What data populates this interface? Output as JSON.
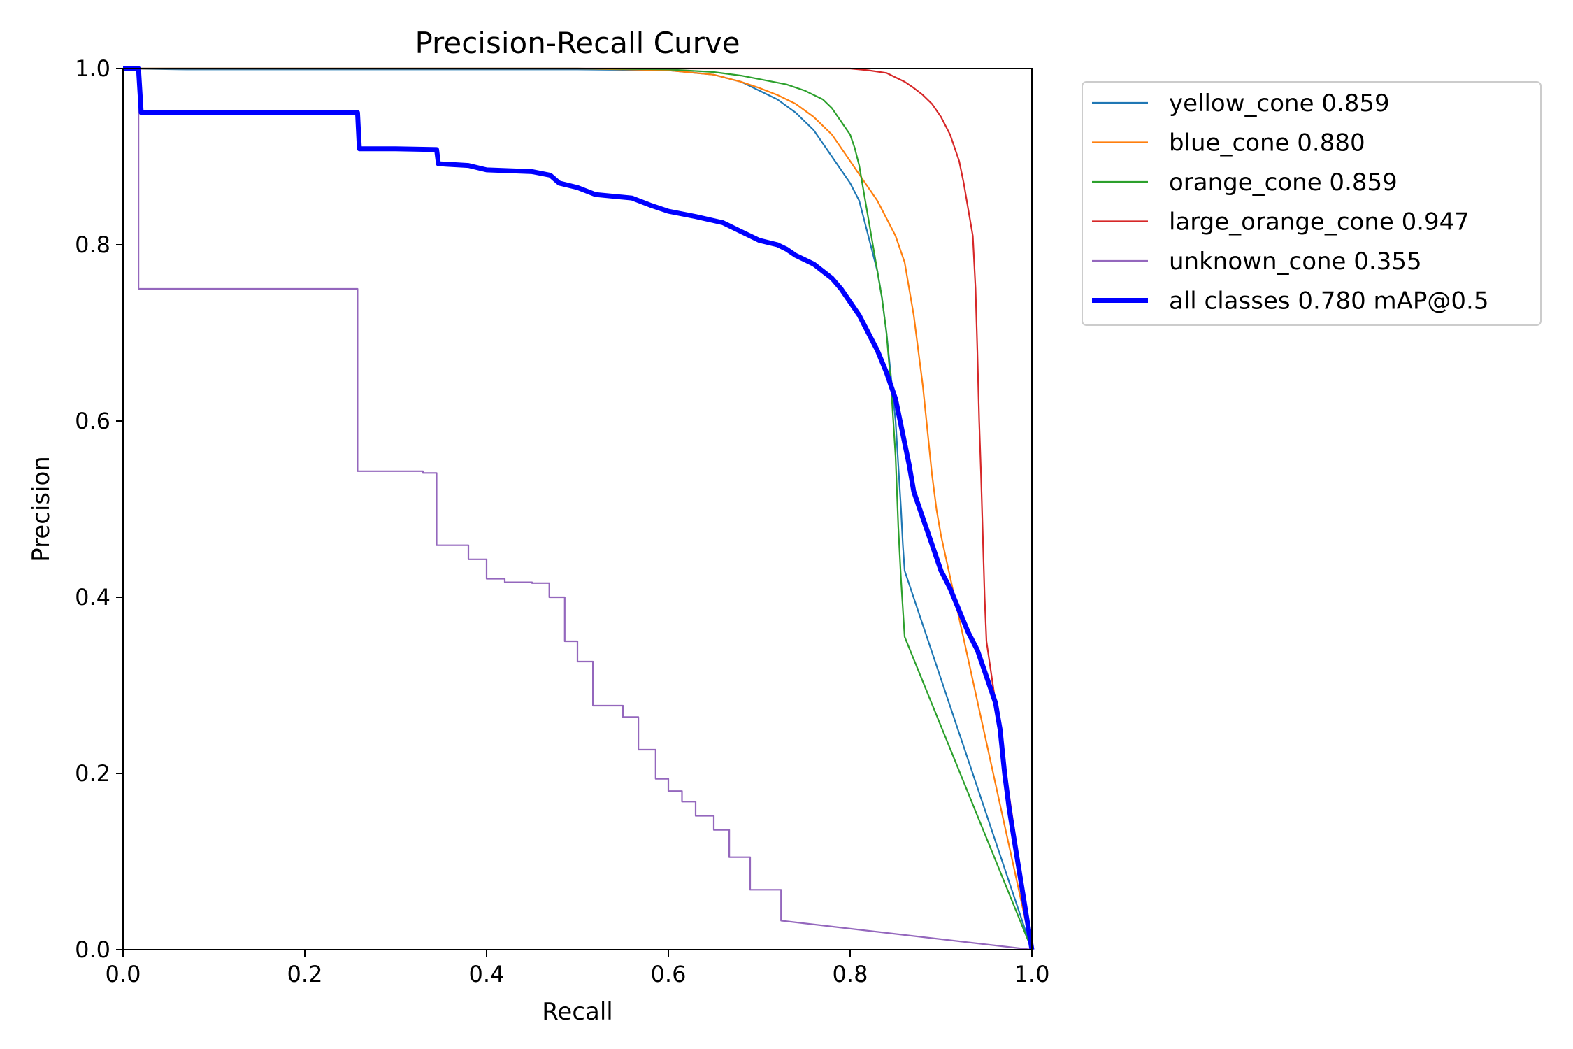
{
  "chart_data": {
    "type": "line",
    "title": "Precision-Recall Curve",
    "xlabel": "Recall",
    "ylabel": "Precision",
    "xlim": [
      0,
      1
    ],
    "ylim": [
      0,
      1
    ],
    "xticks": [
      "0.0",
      "0.2",
      "0.4",
      "0.6",
      "0.8",
      "1.0"
    ],
    "yticks": [
      "0.0",
      "0.2",
      "0.4",
      "0.6",
      "0.8",
      "1.0"
    ],
    "grid": false,
    "legend_position": "outside-top-right",
    "series": [
      {
        "name": "yellow_cone 0.859",
        "color": "#1f77b4",
        "width": "thin",
        "points": [
          [
            0,
            1.0
          ],
          [
            0.07,
            0.999
          ],
          [
            0.3,
            0.999
          ],
          [
            0.5,
            0.999
          ],
          [
            0.6,
            0.998
          ],
          [
            0.65,
            0.993
          ],
          [
            0.68,
            0.985
          ],
          [
            0.7,
            0.975
          ],
          [
            0.72,
            0.965
          ],
          [
            0.74,
            0.95
          ],
          [
            0.76,
            0.93
          ],
          [
            0.77,
            0.915
          ],
          [
            0.78,
            0.9
          ],
          [
            0.79,
            0.885
          ],
          [
            0.8,
            0.87
          ],
          [
            0.81,
            0.85
          ],
          [
            0.815,
            0.83
          ],
          [
            0.82,
            0.81
          ],
          [
            0.825,
            0.79
          ],
          [
            0.83,
            0.77
          ],
          [
            0.835,
            0.74
          ],
          [
            0.84,
            0.7
          ],
          [
            0.845,
            0.65
          ],
          [
            0.85,
            0.6
          ],
          [
            0.853,
            0.55
          ],
          [
            0.856,
            0.5
          ],
          [
            0.858,
            0.46
          ],
          [
            0.86,
            0.43
          ],
          [
            1.0,
            0.0
          ]
        ]
      },
      {
        "name": "blue_cone 0.880",
        "color": "#ff7f0e",
        "width": "thin",
        "points": [
          [
            0,
            1.0
          ],
          [
            0.3,
            1.0
          ],
          [
            0.5,
            1.0
          ],
          [
            0.6,
            0.998
          ],
          [
            0.65,
            0.993
          ],
          [
            0.68,
            0.985
          ],
          [
            0.7,
            0.978
          ],
          [
            0.72,
            0.97
          ],
          [
            0.74,
            0.96
          ],
          [
            0.76,
            0.945
          ],
          [
            0.78,
            0.925
          ],
          [
            0.79,
            0.91
          ],
          [
            0.8,
            0.895
          ],
          [
            0.81,
            0.88
          ],
          [
            0.82,
            0.865
          ],
          [
            0.83,
            0.85
          ],
          [
            0.84,
            0.83
          ],
          [
            0.85,
            0.81
          ],
          [
            0.86,
            0.78
          ],
          [
            0.865,
            0.75
          ],
          [
            0.87,
            0.72
          ],
          [
            0.875,
            0.68
          ],
          [
            0.88,
            0.64
          ],
          [
            0.885,
            0.59
          ],
          [
            0.89,
            0.54
          ],
          [
            0.895,
            0.5
          ],
          [
            0.9,
            0.47
          ],
          [
            1.0,
            0.0
          ]
        ]
      },
      {
        "name": "orange_cone 0.859",
        "color": "#2ca02c",
        "width": "thin",
        "points": [
          [
            0,
            1.0
          ],
          [
            0.3,
            1.0
          ],
          [
            0.5,
            1.0
          ],
          [
            0.6,
            0.999
          ],
          [
            0.65,
            0.996
          ],
          [
            0.68,
            0.992
          ],
          [
            0.7,
            0.988
          ],
          [
            0.73,
            0.982
          ],
          [
            0.75,
            0.975
          ],
          [
            0.77,
            0.965
          ],
          [
            0.78,
            0.955
          ],
          [
            0.79,
            0.94
          ],
          [
            0.8,
            0.925
          ],
          [
            0.805,
            0.91
          ],
          [
            0.81,
            0.89
          ],
          [
            0.815,
            0.86
          ],
          [
            0.82,
            0.83
          ],
          [
            0.825,
            0.8
          ],
          [
            0.83,
            0.77
          ],
          [
            0.835,
            0.74
          ],
          [
            0.84,
            0.7
          ],
          [
            0.845,
            0.64
          ],
          [
            0.85,
            0.56
          ],
          [
            0.853,
            0.48
          ],
          [
            0.856,
            0.42
          ],
          [
            0.86,
            0.355
          ],
          [
            1.0,
            0.0
          ]
        ]
      },
      {
        "name": "large_orange_cone 0.947",
        "color": "#d62728",
        "width": "thin",
        "points": [
          [
            0,
            1.0
          ],
          [
            0.5,
            1.0
          ],
          [
            0.8,
            1.0
          ],
          [
            0.82,
            0.998
          ],
          [
            0.84,
            0.995
          ],
          [
            0.85,
            0.99
          ],
          [
            0.86,
            0.985
          ],
          [
            0.87,
            0.978
          ],
          [
            0.88,
            0.97
          ],
          [
            0.89,
            0.96
          ],
          [
            0.9,
            0.945
          ],
          [
            0.91,
            0.925
          ],
          [
            0.92,
            0.895
          ],
          [
            0.925,
            0.87
          ],
          [
            0.93,
            0.84
          ],
          [
            0.935,
            0.81
          ],
          [
            0.938,
            0.75
          ],
          [
            0.94,
            0.68
          ],
          [
            0.942,
            0.6
          ],
          [
            0.944,
            0.54
          ],
          [
            0.946,
            0.47
          ],
          [
            0.948,
            0.4
          ],
          [
            0.95,
            0.35
          ],
          [
            1.0,
            0.0
          ]
        ]
      },
      {
        "name": "unknown_cone 0.355",
        "color": "#9467bd",
        "width": "thin",
        "points": [
          [
            0,
            1.0
          ],
          [
            0.017,
            1.0
          ],
          [
            0.017,
            0.75
          ],
          [
            0.258,
            0.75
          ],
          [
            0.258,
            0.543
          ],
          [
            0.33,
            0.543
          ],
          [
            0.33,
            0.541
          ],
          [
            0.345,
            0.541
          ],
          [
            0.345,
            0.459
          ],
          [
            0.38,
            0.459
          ],
          [
            0.38,
            0.443
          ],
          [
            0.4,
            0.443
          ],
          [
            0.4,
            0.421
          ],
          [
            0.42,
            0.421
          ],
          [
            0.42,
            0.417
          ],
          [
            0.45,
            0.417
          ],
          [
            0.45,
            0.416
          ],
          [
            0.469,
            0.416
          ],
          [
            0.469,
            0.4
          ],
          [
            0.486,
            0.4
          ],
          [
            0.486,
            0.35
          ],
          [
            0.5,
            0.35
          ],
          [
            0.5,
            0.327
          ],
          [
            0.517,
            0.327
          ],
          [
            0.517,
            0.277
          ],
          [
            0.55,
            0.277
          ],
          [
            0.55,
            0.264
          ],
          [
            0.567,
            0.264
          ],
          [
            0.567,
            0.227
          ],
          [
            0.586,
            0.227
          ],
          [
            0.586,
            0.194
          ],
          [
            0.6,
            0.194
          ],
          [
            0.6,
            0.18
          ],
          [
            0.615,
            0.18
          ],
          [
            0.615,
            0.168
          ],
          [
            0.63,
            0.168
          ],
          [
            0.63,
            0.152
          ],
          [
            0.65,
            0.152
          ],
          [
            0.65,
            0.136
          ],
          [
            0.667,
            0.136
          ],
          [
            0.667,
            0.105
          ],
          [
            0.69,
            0.105
          ],
          [
            0.69,
            0.068
          ],
          [
            0.724,
            0.068
          ],
          [
            0.724,
            0.033
          ],
          [
            1.0,
            0.0
          ]
        ]
      },
      {
        "name": "all classes 0.780 mAP@0.5",
        "color": "#0000ff",
        "width": "thick",
        "points": [
          [
            0,
            1.0
          ],
          [
            0.017,
            1.0
          ],
          [
            0.02,
            0.95
          ],
          [
            0.1,
            0.95
          ],
          [
            0.258,
            0.95
          ],
          [
            0.26,
            0.909
          ],
          [
            0.3,
            0.909
          ],
          [
            0.345,
            0.908
          ],
          [
            0.347,
            0.892
          ],
          [
            0.38,
            0.89
          ],
          [
            0.4,
            0.885
          ],
          [
            0.45,
            0.883
          ],
          [
            0.47,
            0.879
          ],
          [
            0.48,
            0.87
          ],
          [
            0.5,
            0.865
          ],
          [
            0.52,
            0.857
          ],
          [
            0.56,
            0.853
          ],
          [
            0.58,
            0.845
          ],
          [
            0.6,
            0.838
          ],
          [
            0.63,
            0.832
          ],
          [
            0.66,
            0.825
          ],
          [
            0.68,
            0.815
          ],
          [
            0.7,
            0.805
          ],
          [
            0.72,
            0.8
          ],
          [
            0.73,
            0.795
          ],
          [
            0.74,
            0.788
          ],
          [
            0.76,
            0.778
          ],
          [
            0.77,
            0.77
          ],
          [
            0.78,
            0.762
          ],
          [
            0.79,
            0.75
          ],
          [
            0.8,
            0.735
          ],
          [
            0.81,
            0.72
          ],
          [
            0.82,
            0.7
          ],
          [
            0.83,
            0.68
          ],
          [
            0.84,
            0.655
          ],
          [
            0.85,
            0.625
          ],
          [
            0.855,
            0.6
          ],
          [
            0.86,
            0.575
          ],
          [
            0.865,
            0.55
          ],
          [
            0.87,
            0.52
          ],
          [
            0.88,
            0.49
          ],
          [
            0.89,
            0.46
          ],
          [
            0.9,
            0.43
          ],
          [
            0.91,
            0.41
          ],
          [
            0.92,
            0.385
          ],
          [
            0.93,
            0.36
          ],
          [
            0.94,
            0.34
          ],
          [
            0.95,
            0.31
          ],
          [
            0.96,
            0.28
          ],
          [
            0.965,
            0.25
          ],
          [
            0.97,
            0.2
          ],
          [
            0.975,
            0.16
          ],
          [
            1.0,
            0.0
          ]
        ]
      }
    ]
  }
}
